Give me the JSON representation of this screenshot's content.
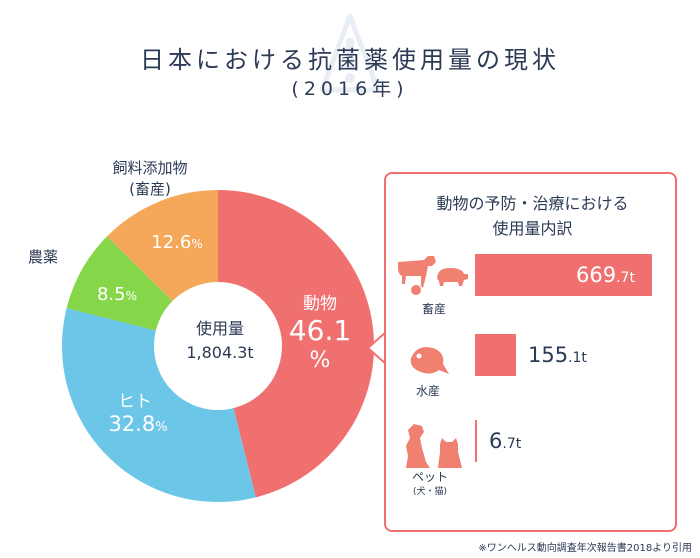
{
  "header": {
    "title": "日本における抗菌薬使用量の現状",
    "subtitle": "(2016年)"
  },
  "center": {
    "label": "使用量",
    "value": "1,804.3t"
  },
  "colors": {
    "animal": "#f07070",
    "human": "#6cc6e8",
    "agri": "#86d64a",
    "feed": "#f5a85a",
    "icon": "#f08070"
  },
  "chart_data": [
    {
      "type": "pie",
      "title": "",
      "slices": [
        {
          "name": "動物",
          "value": 46.1,
          "label": "46.1",
          "unit": "%"
        },
        {
          "name": "ヒト",
          "value": 32.8,
          "label": "32.8",
          "unit": "%"
        },
        {
          "name": "農薬",
          "value": 8.5,
          "label": "8.5",
          "unit": "%"
        },
        {
          "name": "飼料添加物",
          "name2": "(畜産)",
          "value": 12.6,
          "label": "12.6",
          "unit": "%"
        }
      ]
    },
    {
      "type": "bar",
      "title": "動物の予防・治療における使用量内訳",
      "categories": [
        "畜産",
        "水産",
        "ペット"
      ],
      "category_sub": [
        "",
        "",
        "(犬・猫)"
      ],
      "values": [
        669.7,
        155.1,
        6.7
      ],
      "value_int": [
        "669",
        "155",
        "6"
      ],
      "value_dec": [
        ".7t",
        ".1t",
        ".7t"
      ]
    }
  ],
  "panel": {
    "title_line1": "動物の予防・治療における",
    "title_line2": "使用量内訳"
  },
  "footer": {
    "source": "※ワンヘルス動向調査年次報告書2018より引用"
  }
}
